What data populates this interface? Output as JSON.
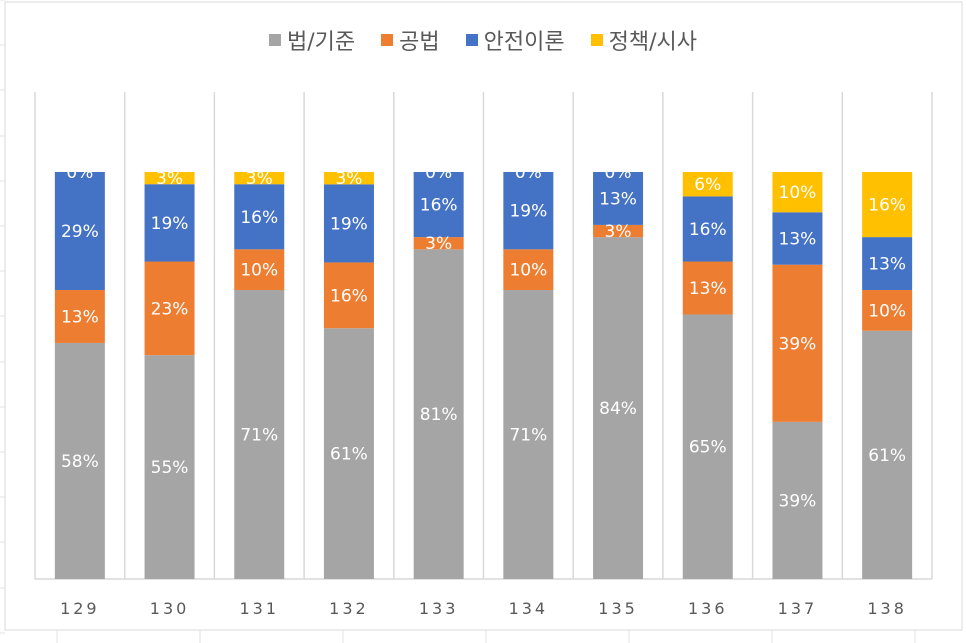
{
  "chart_data": {
    "type": "bar",
    "stacked": "percent",
    "categories": [
      "129",
      "130",
      "131",
      "132",
      "133",
      "134",
      "135",
      "136",
      "137",
      "138"
    ],
    "series": [
      {
        "name": "법/기준",
        "color": "#A5A5A5",
        "values": [
          58,
          55,
          71,
          61,
          81,
          71,
          84,
          65,
          39,
          61
        ]
      },
      {
        "name": "공법",
        "color": "#ED7D31",
        "values": [
          13,
          23,
          10,
          16,
          3,
          10,
          3,
          13,
          39,
          10
        ]
      },
      {
        "name": "안전이론",
        "color": "#4472C4",
        "values": [
          29,
          19,
          16,
          19,
          16,
          19,
          13,
          16,
          13,
          13
        ]
      },
      {
        "name": "정책/시사",
        "color": "#FFC000",
        "values": [
          0,
          3,
          3,
          3,
          0,
          0,
          0,
          6,
          10,
          16
        ]
      }
    ],
    "data_label_format": "{v}%",
    "legend_position": "top",
    "ylim": [
      0,
      100
    ],
    "grid": "vertical category separators"
  }
}
